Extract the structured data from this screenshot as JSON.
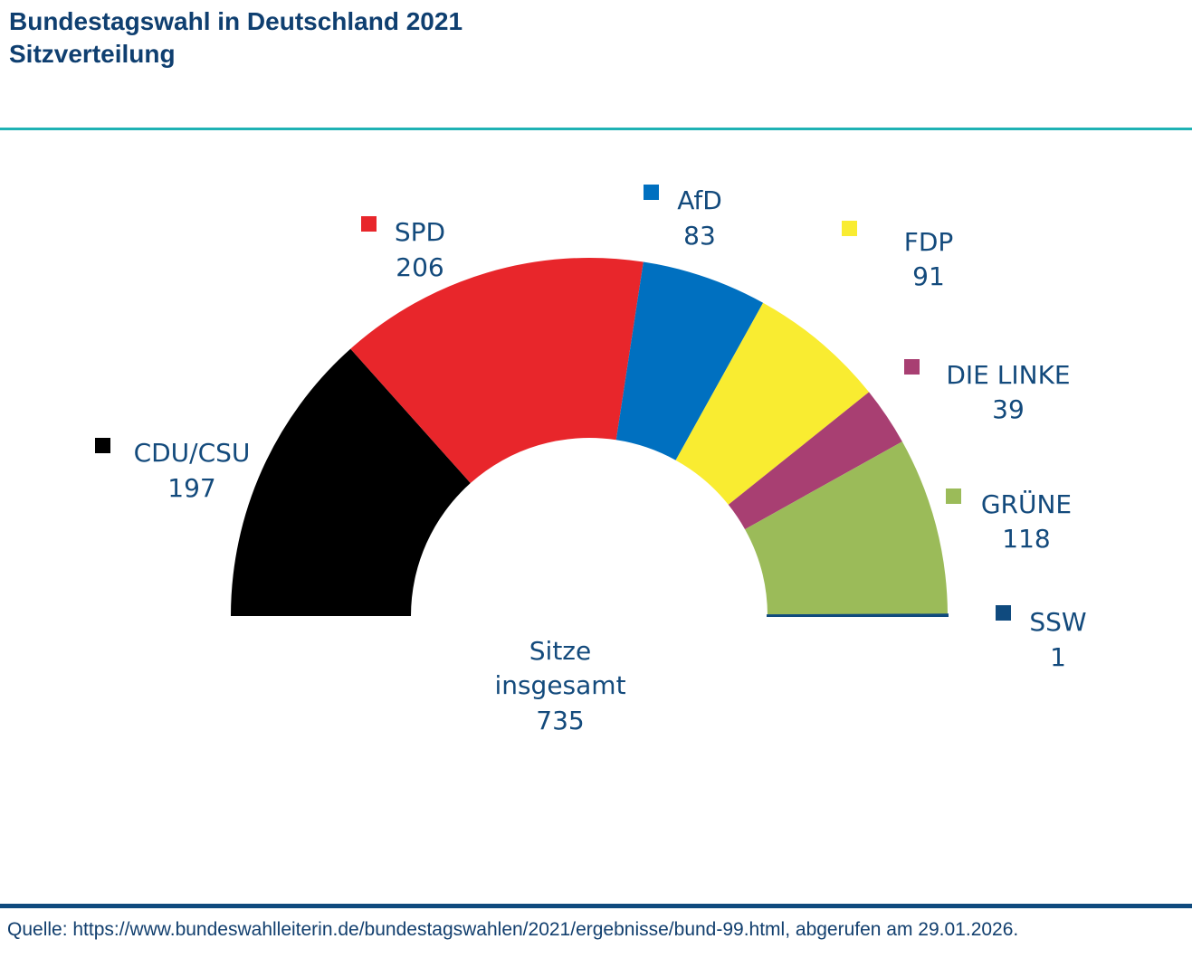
{
  "header": {
    "title_line1": "Bundestagswahl in Deutschland 2021",
    "title_line2": "Sitzverteilung"
  },
  "footer": {
    "source": "Quelle: https://www.bundeswahlleiterin.de/bundestagswahlen/2021/ergebnisse/bund-99.html, abgerufen am 29.01.2026."
  },
  "colors": {
    "title": "#0f3f70",
    "label": "#134a7c",
    "accent_rule": "#1fb2b4",
    "footer_rule": "#0f4a7e"
  },
  "chart_data": {
    "type": "pie",
    "variant": "half-donut (parliament seat distribution)",
    "title": "Bundestagswahl in Deutschland 2021",
    "subtitle": "Sitzverteilung",
    "center_label": [
      "Sitze",
      "insgesamt",
      "735"
    ],
    "total": 735,
    "categories": [
      "CDU/CSU",
      "SPD",
      "AfD",
      "FDP",
      "DIE LINKE",
      "GRÜNE",
      "SSW"
    ],
    "values": [
      197,
      206,
      83,
      91,
      39,
      118,
      1
    ],
    "colors": [
      "#000000",
      "#e8262b",
      "#0070c0",
      "#f9ec31",
      "#a83f72",
      "#9bbb59",
      "#0f4a7e"
    ],
    "legend": "labels placed next to each segment"
  }
}
